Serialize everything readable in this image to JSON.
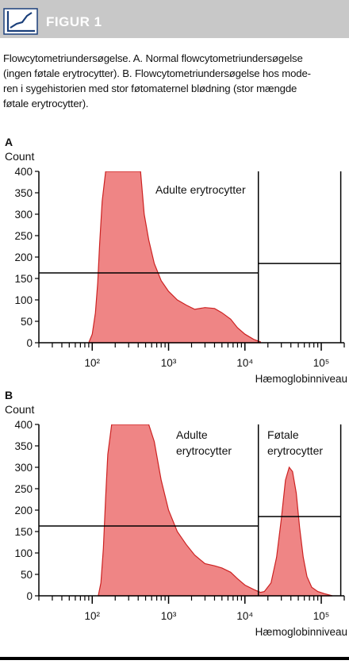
{
  "header": {
    "label": "FIGUR 1",
    "bar_color": "#c8c8c8",
    "icon": "line-chart-icon"
  },
  "caption": {
    "lines": [
      "Flowcytometriundersøgelse.   A. Normal flowcytometriundersøgelse",
      "(ingen føtale erytrocytter).   B. Flowcytometriundersøgelse hos mode-",
      "ren i sygehistorien med stor føtomaternel blødning (stor mængde",
      "føtale erytrocytter)."
    ]
  },
  "chart_data": [
    {
      "type": "area",
      "panel_label": "A",
      "ylabel": "Count",
      "xlabel": "Hæmoglobinniveau",
      "x_scale": "log",
      "xlim": [
        20,
        200000
      ],
      "ylim": [
        0,
        400
      ],
      "yticks": [
        0,
        50,
        100,
        150,
        200,
        250,
        300,
        350,
        400
      ],
      "xticks": [
        100,
        1000,
        10000,
        100000
      ],
      "xtick_labels": [
        "10²",
        "10³",
        "10⁴",
        "10⁵"
      ],
      "fill_color": "#ef8585",
      "outline_color": "#cc2222",
      "x": [
        90,
        100,
        110,
        118,
        125,
        135,
        150,
        180,
        220,
        280,
        330,
        380,
        430,
        480,
        550,
        650,
        800,
        1000,
        1300,
        1700,
        2200,
        3000,
        4000,
        5000,
        6500,
        8000,
        10000,
        13000,
        16000
      ],
      "values": [
        0,
        20,
        70,
        140,
        230,
        330,
        400,
        400,
        400,
        400,
        400,
        400,
        400,
        300,
        240,
        185,
        145,
        120,
        100,
        88,
        78,
        82,
        80,
        70,
        55,
        35,
        20,
        8,
        2
      ],
      "annotations": [
        {
          "text": "Adulte erytrocytter"
        }
      ],
      "gates": [
        {
          "x_range": [
            20,
            15000
          ],
          "y": 163
        },
        {
          "x_range": [
            15000,
            180000
          ],
          "y": 185
        }
      ]
    },
    {
      "type": "area",
      "panel_label": "B",
      "ylabel": "Count",
      "xlabel": "Hæmoglobinniveau",
      "x_scale": "log",
      "xlim": [
        20,
        200000
      ],
      "ylim": [
        0,
        400
      ],
      "yticks": [
        0,
        50,
        100,
        150,
        200,
        250,
        300,
        350,
        400
      ],
      "xticks": [
        100,
        1000,
        10000,
        100000
      ],
      "xtick_labels": [
        "10²",
        "10³",
        "10⁴",
        "10⁵"
      ],
      "fill_color": "#ef8585",
      "outline_color": "#cc2222",
      "x": [
        120,
        130,
        140,
        150,
        160,
        180,
        220,
        300,
        380,
        460,
        550,
        650,
        800,
        1000,
        1300,
        1700,
        2200,
        3000,
        4000,
        5000,
        6500,
        8000,
        10000,
        13000,
        16000,
        18000,
        22000,
        26000,
        30000,
        34000,
        38000,
        42000,
        47000,
        52000,
        58000,
        65000,
        75000,
        90000,
        110000,
        140000
      ],
      "values": [
        0,
        30,
        110,
        230,
        330,
        400,
        400,
        400,
        400,
        400,
        400,
        360,
        270,
        200,
        150,
        120,
        95,
        75,
        70,
        65,
        55,
        40,
        25,
        15,
        8,
        10,
        30,
        90,
        180,
        270,
        300,
        290,
        240,
        160,
        90,
        45,
        20,
        10,
        5,
        0
      ],
      "annotations": [
        {
          "text": "Adulte"
        },
        {
          "text": "erytrocytter"
        },
        {
          "text": "Føtale"
        },
        {
          "text": "erytrocytter"
        }
      ],
      "gates": [
        {
          "x_range": [
            20,
            15000
          ],
          "y": 163
        },
        {
          "x_range": [
            15000,
            180000
          ],
          "y": 185
        }
      ]
    }
  ]
}
